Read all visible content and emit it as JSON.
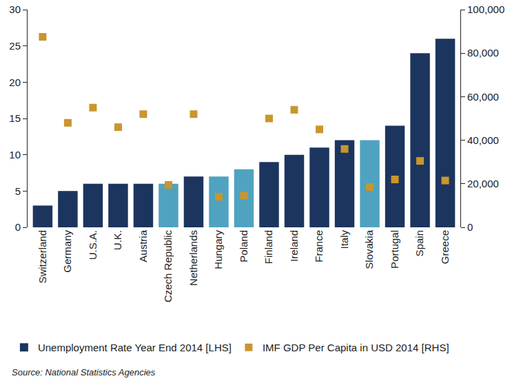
{
  "chart_data": {
    "type": "bar",
    "categories": [
      "Switzerland",
      "Germany",
      "U.S.A.",
      "U.K.",
      "Austria",
      "Czech Republic",
      "Netherlands",
      "Hungary",
      "Poland",
      "Finland",
      "Ireland",
      "France",
      "Italy",
      "Slovakia",
      "Portugal",
      "Spain",
      "Greece"
    ],
    "series": [
      {
        "name": "Unemployment Rate Year End 2014 [LHS]",
        "type": "bar",
        "color": "#1c355e",
        "colors": [
          "#1c355e",
          "#1c355e",
          "#1c355e",
          "#1c355e",
          "#1c355e",
          "#4fa3c0",
          "#1c355e",
          "#4fa3c0",
          "#4fa3c0",
          "#1c355e",
          "#1c355e",
          "#1c355e",
          "#1c355e",
          "#4fa3c0",
          "#1c355e",
          "#1c355e",
          "#1c355e"
        ],
        "values": [
          3,
          5,
          6,
          6,
          6,
          6,
          7,
          7,
          8,
          9,
          10,
          11,
          12,
          12,
          14,
          24,
          26
        ]
      },
      {
        "name": "IMF GDP Per Capita in USD 2014 [RHS]",
        "type": "scatter",
        "axis": "y2",
        "color": "#c9962e",
        "marker": "square",
        "values": [
          87500,
          48000,
          55000,
          46000,
          52000,
          19500,
          52000,
          14000,
          14500,
          50000,
          54000,
          45000,
          36000,
          18500,
          22000,
          30500,
          21500
        ]
      }
    ],
    "ylim": [
      0,
      30
    ],
    "yticks": [
      0,
      5,
      10,
      15,
      20,
      25,
      30
    ],
    "y2lim": [
      0,
      100000
    ],
    "y2ticks": [
      0,
      {
        "value": 20000,
        "label": "20,000"
      },
      {
        "value": 40000,
        "label": "40,000"
      },
      {
        "value": 60000,
        "label": "60,000"
      },
      {
        "value": 80000,
        "label": "80,000"
      },
      {
        "value": 100000,
        "label": "100,000"
      }
    ],
    "grid": false,
    "legend": "bottom",
    "annotations": [
      "Source: National Statistics Agencies"
    ]
  }
}
